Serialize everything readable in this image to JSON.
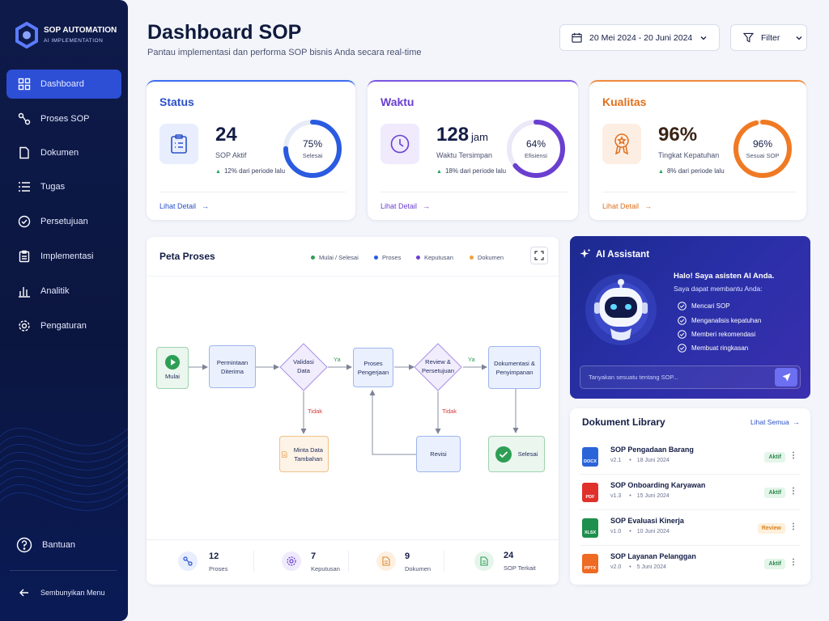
{
  "sidebar": {
    "brand": "SOP AUTOMATION",
    "tagline": "AI IMPLEMENTATION",
    "menu": [
      "Dashboard",
      "Proses SOP",
      "Dokumen",
      "Tugas",
      "Persetujuan",
      "Implementasi",
      "Analitik",
      "Pengaturan"
    ],
    "help": "Bantuan",
    "collapse": "Sembunyikan Menu"
  },
  "header": {
    "title": "Dashboard SOP",
    "subtitle": "Pantau implementasi dan performa SOP bisnis Anda secara real-time",
    "date_range": "20 Mei 2024 - 20 Juni 2024",
    "filter": "Filter"
  },
  "cards": [
    {
      "title": "Status",
      "value": "24",
      "label": "SOP Aktif",
      "trend": "12% dari periode lalu",
      "percent": 75,
      "percent_label": "75%",
      "ring_caption": "Selesai",
      "link": "Lihat Detail"
    },
    {
      "title": "Waktu",
      "value": "128",
      "unit": "jam",
      "label": "Waktu Tersimpan",
      "trend": "18% dari periode lalu",
      "percent": 64,
      "percent_label": "64%",
      "ring_caption": "Efisiensi",
      "link": "Lihat Detail"
    },
    {
      "title": "Kualitas",
      "value": "96%",
      "label": "Tingkat Kepatuhan",
      "trend": "8% dari periode lalu",
      "percent": 96,
      "percent_label": "96%",
      "ring_caption": "Sesuai SOP",
      "link": "Lihat Detail"
    }
  ],
  "process_map": {
    "title": "Peta Proses",
    "legend": [
      "Mulai / Selesai",
      "Proses",
      "Keputusan",
      "Dokumen"
    ],
    "nodes": [
      "Mulai",
      "Permintaan Diterima",
      "Validasi Data",
      "Proses Pengerjaan",
      "Review & Persetujuan",
      "Dokumentasi & Penyimpanan",
      "Minta Data Tambahan",
      "Revisi",
      "Selesai"
    ],
    "edge_labels": [
      "Ya",
      "Tidak",
      "Ya",
      "Tidak"
    ],
    "stats": [
      {
        "value": "12",
        "label": "Proses"
      },
      {
        "value": "7",
        "label": "Keputusan"
      },
      {
        "value": "9",
        "label": "Dokumen"
      },
      {
        "value": "24",
        "label": "SOP Terkait"
      }
    ]
  },
  "assistant": {
    "title": "AI Assistant",
    "greeting": "Halo! Saya asisten AI Anda.",
    "intro": "Saya dapat membantu Anda:",
    "items": [
      "Mencari SOP",
      "Menganalisis kepatuhan",
      "Memberi rekomendasi",
      "Membuat ringkasan"
    ],
    "placeholder": "Tanyakan sesuatu tentang SOP..."
  },
  "library": {
    "title": "Dokument Library",
    "link": "Lihat Semua",
    "documents": [
      {
        "name": "SOP Pengadaan Barang",
        "ext": "DOCX",
        "version": "v2.1",
        "date": "18 Juni 2024",
        "status": "Aktif"
      },
      {
        "name": "SOP Onboarding Karyawan",
        "ext": "PDF",
        "version": "v1.3",
        "date": "15 Juni 2024",
        "status": "Aktif"
      },
      {
        "name": "SOP Evaluasi Kinerja",
        "ext": "XLSX",
        "version": "v1.0",
        "date": "10 Juni 2024",
        "status": "Review"
      },
      {
        "name": "SOP Layanan Pelanggan",
        "ext": "PPTX",
        "version": "v2.0",
        "date": "5 Juni 2024",
        "status": "Aktif"
      }
    ]
  }
}
